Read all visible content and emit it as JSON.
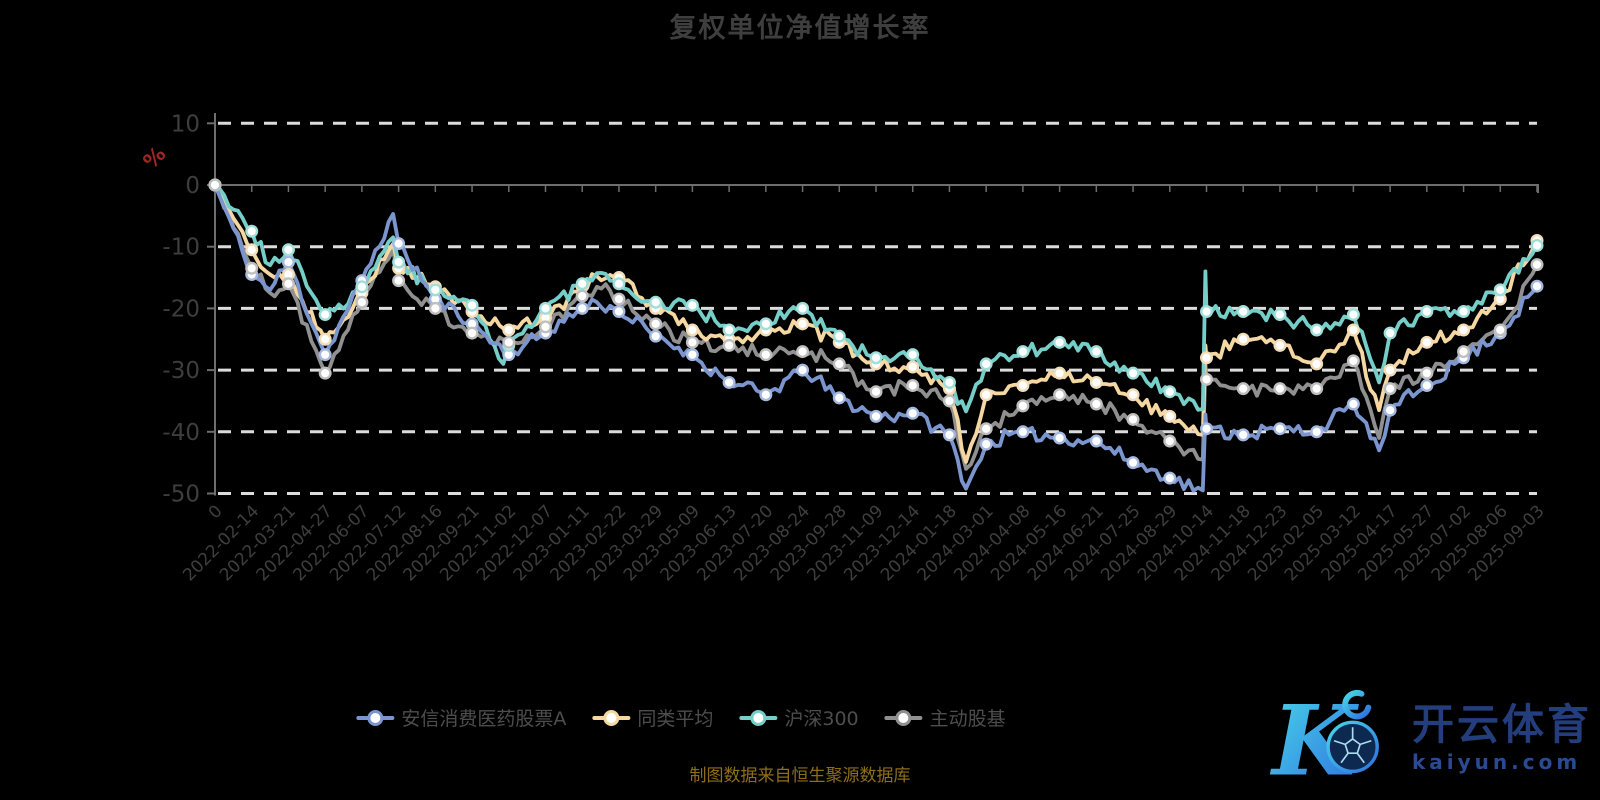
{
  "title": "复权单位净值增长率",
  "caption": "制图数据来自恒生聚源数据库",
  "watermark": {
    "brand_cn": "开云体育",
    "brand_domain": "kaiyun.com"
  },
  "axis": {
    "unit_label": "%",
    "y_ticks": [
      10,
      0,
      -10,
      -20,
      -30,
      -40,
      -50
    ]
  },
  "chart_data": {
    "type": "line",
    "title": "复权单位净值增长率",
    "ylabel": "%",
    "ylim": [
      -50,
      10
    ],
    "grid": "dashed-horizontal",
    "legend_position": "bottom",
    "categories": [
      "0",
      "2022-02-14",
      "2022-03-21",
      "2022-04-27",
      "2022-06-07",
      "2022-07-12",
      "2022-08-16",
      "2022-09-21",
      "2022-11-02",
      "2022-12-07",
      "2023-01-11",
      "2023-02-22",
      "2023-03-29",
      "2023-05-09",
      "2023-06-13",
      "2023-07-20",
      "2023-08-24",
      "2023-09-28",
      "2023-11-09",
      "2023-12-14",
      "2024-01-18",
      "2024-03-01",
      "2024-04-08",
      "2024-05-16",
      "2024-06-21",
      "2024-07-25",
      "2024-08-29",
      "2024-10-14",
      "2024-11-18",
      "2024-12-23",
      "2025-02-05",
      "2025-03-12",
      "2025-04-17",
      "2025-05-27",
      "2025-07-02",
      "2025-08-06",
      "2025-09-03"
    ],
    "series": [
      {
        "name": "安信消费医药股票A",
        "color": "#7B96CE",
        "marker_ring": "#A5B9E0",
        "values": [
          0,
          -14.5,
          -12.5,
          -27.5,
          -15.5,
          -9.5,
          -18.5,
          -22.5,
          -27.5,
          -24,
          -20,
          -20.5,
          -24.5,
          -27.5,
          -32,
          -34,
          -30,
          -34.5,
          -37.5,
          -37,
          -40.5,
          -42,
          -40,
          -41,
          -41.5,
          -45,
          -47.5,
          -39.5,
          -40.5,
          -39.5,
          -40,
          -35.5,
          -36.5,
          -32.5,
          -28,
          -24,
          -16.4
        ]
      },
      {
        "name": "同类平均",
        "color": "#F5D7A2",
        "marker_ring": "#F2DDB7",
        "values": [
          0,
          -10.5,
          -14.5,
          -25,
          -17.5,
          -13.5,
          -16.5,
          -20.5,
          -23.5,
          -21.5,
          -16.5,
          -15,
          -20,
          -23.5,
          -25,
          -23.5,
          -22.5,
          -25.5,
          -29,
          -29.5,
          -33,
          -34,
          -32.5,
          -30.5,
          -32,
          -34,
          -37.5,
          -28,
          -25,
          -26,
          -29,
          -23.5,
          -30,
          -25.5,
          -23.5,
          -18.5,
          -9
        ]
      },
      {
        "name": "沪深300",
        "color": "#75CEC8",
        "marker_ring": "#9FDED9",
        "values": [
          0,
          -7.5,
          -10.5,
          -21,
          -16.5,
          -12.5,
          -17,
          -19.5,
          -26,
          -20,
          -16,
          -16,
          -19,
          -19.5,
          -23.5,
          -22.5,
          -20,
          -24.5,
          -28,
          -27.5,
          -32,
          -29,
          -27,
          -25.5,
          -27,
          -30.5,
          -33.5,
          -20.5,
          -20.5,
          -21,
          -23.5,
          -21,
          -24,
          -20.5,
          -20.5,
          -17,
          -9.8
        ]
      },
      {
        "name": "主动股基",
        "color": "#909090",
        "marker_ring": "#BFBFBF",
        "values": [
          0,
          -13.5,
          -16,
          -30.5,
          -19,
          -15.5,
          -20,
          -24,
          -25.5,
          -23,
          -18,
          -18.5,
          -22.5,
          -25.5,
          -26,
          -27.5,
          -27,
          -29,
          -33.5,
          -32.5,
          -35,
          -39.5,
          -35.8,
          -34,
          -35.5,
          -38,
          -41.5,
          -31.5,
          -33,
          -33,
          -33,
          -28.5,
          -33,
          -30.5,
          -27,
          -23.5,
          -12.9
        ]
      }
    ],
    "intra_period_extremes": [
      {
        "between": [
          "2022-02-14",
          "2022-03-21"
        ],
        "frac": 0.5,
        "values": {
          "安信消费医药股票A": -17,
          "同类平均": -14.5,
          "沪深300": -13,
          "主动股基": -17.5
        }
      },
      {
        "between": [
          "2022-06-07",
          "2022-07-12"
        ],
        "frac": 0.85,
        "values": {
          "安信消费医药股票A": -4.7,
          "同类平均": -9.5,
          "沪深300": -8.5,
          "主动股基": -10.5
        }
      },
      {
        "between": [
          "2022-09-21",
          "2022-11-02"
        ],
        "frac": 0.85,
        "values": {
          "沪深300": -29
        }
      },
      {
        "between": [
          "2023-01-11",
          "2023-02-22"
        ],
        "frac": 0.4,
        "values": {
          "安信消费医药股票A": -19,
          "同类平均": -14.8,
          "沪深300": -14.3,
          "主动股基": -16.5
        }
      },
      {
        "between": [
          "2024-01-18",
          "2024-03-01"
        ],
        "frac": 0.45,
        "values": {
          "安信消费医药股票A": -49.2,
          "同类平均": -44.9,
          "沪深300": -36.7,
          "主动股基": -46
        }
      },
      {
        "between": [
          "2024-08-29",
          "2024-10-14"
        ],
        "frac": 0.9,
        "values": {
          "安信消费医药股票A": -49.5,
          "同类平均": -40.5,
          "沪深300": -36.3,
          "主动股基": -44.5
        }
      },
      {
        "between": [
          "2024-08-29",
          "2024-10-14"
        ],
        "frac": 0.97,
        "values": {
          "安信消费医药股票A": -37.2,
          "同类平均": -26,
          "沪深300": -14,
          "主动股基": -29
        }
      },
      {
        "between": [
          "2025-03-12",
          "2025-04-17"
        ],
        "frac": 0.7,
        "values": {
          "安信消费医药股票A": -43,
          "同类平均": -36.5,
          "沪深300": -32,
          "主动股基": -41
        }
      }
    ]
  }
}
